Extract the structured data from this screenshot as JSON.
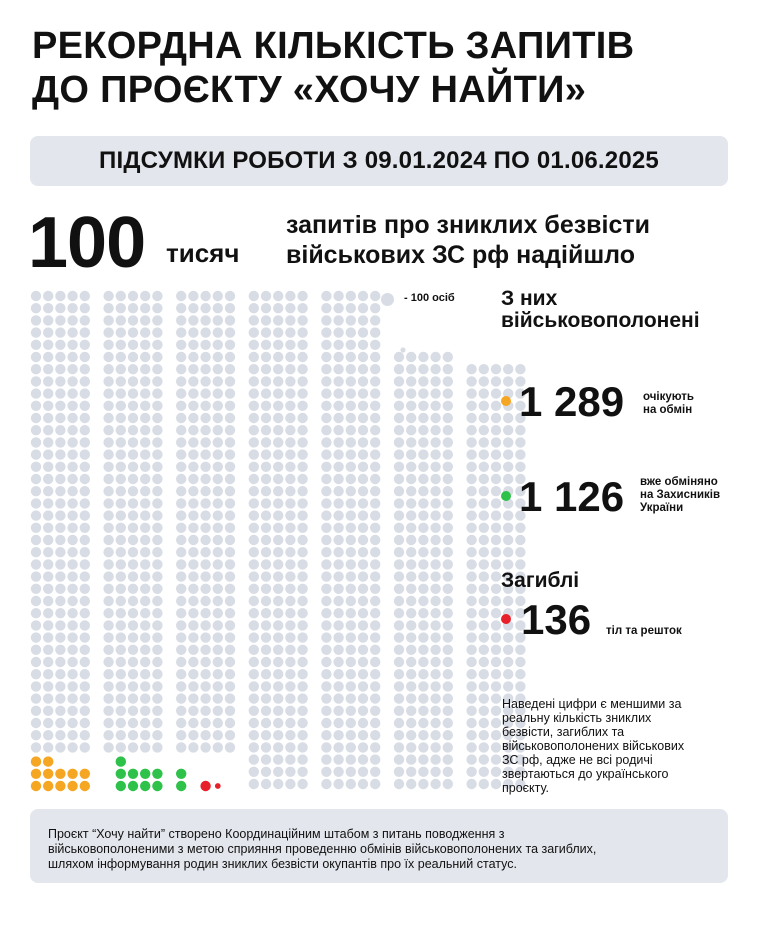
{
  "title": {
    "line1": "РЕКОРДНА КІЛЬКІСТЬ ЗАПИТІВ",
    "line2": "ДО ПРОЄКТУ «ХОЧУ НАЙТИ»"
  },
  "period": "ПІДСУМКИ РОБОТИ З 09.01.2024 ПО 01.06.2025",
  "total": {
    "number": "100",
    "unit": "тисяч",
    "description_line1": "запитів про зниклих безвісти",
    "description_line2": "військових ЗС рф надійшло"
  },
  "legend": {
    "text": "- 100 осіб",
    "color": "#d8dce4"
  },
  "pow": {
    "heading_line1": "З них",
    "heading_line2": "військовополонені",
    "awaiting": {
      "number": "1 289",
      "note_line1": "очікують",
      "note_line2": "на обмін",
      "color": "#f5a623"
    },
    "exchanged": {
      "number": "1 126",
      "note_line1": "вже обміняно",
      "note_line2": "на Захисників",
      "note_line3": "України",
      "color": "#2ec24a"
    }
  },
  "dead": {
    "heading": "Загиблі",
    "number": "136",
    "note": "тіл та решток",
    "color": "#e8202a"
  },
  "dot_counts": {
    "unit_people": 100,
    "awaiting": 12.89,
    "exchanged": 11.26,
    "dead": 1.36
  },
  "disclaimer": {
    "line1": "Наведені цифри є меншими за",
    "line2": "реальну кількість зниклих",
    "line3": "безвісти, загиблих та",
    "line4": "військовополонених військових",
    "line5": "ЗС рф, адже не всі родичі",
    "line6": "звертаються до українського",
    "line7": "проєкту."
  },
  "footer": {
    "line1": "Проєкт “Хочу найти” створено Координаційним штабом з питань поводження з",
    "line2": "військовополоненими з метою сприяння проведенню обмінів військовополонених та загиблих,",
    "line3": "шляхом інформування родин зниклих безвісти окупантів про їх реальний статус."
  }
}
